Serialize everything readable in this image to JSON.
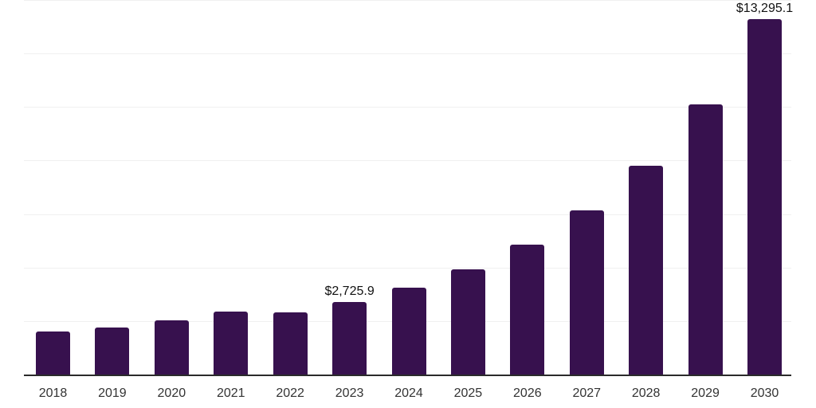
{
  "chart_data": {
    "type": "bar",
    "title": "",
    "xlabel": "",
    "ylabel": "",
    "categories": [
      "2018",
      "2019",
      "2020",
      "2021",
      "2022",
      "2023",
      "2024",
      "2025",
      "2026",
      "2027",
      "2028",
      "2029",
      "2030"
    ],
    "values": [
      1610,
      1760,
      2030,
      2360,
      2330,
      2725.9,
      3240,
      3940,
      4860,
      6140,
      7800,
      10100,
      13295.1
    ],
    "data_labels": [
      null,
      null,
      null,
      null,
      null,
      "$2,725.9",
      null,
      null,
      null,
      null,
      null,
      null,
      "$13,295.1"
    ],
    "ylim": [
      0,
      14000
    ],
    "gridline_interval": 2000,
    "grid": "horizontal",
    "legend_position": "none",
    "y_axis_tick_labels_visible": false,
    "bar_color": "#37114e",
    "grid_color": "#f0f0f0",
    "axis_color": "#2b2b2b",
    "x_tick_color": "#333333",
    "data_label_color": "#111111"
  }
}
